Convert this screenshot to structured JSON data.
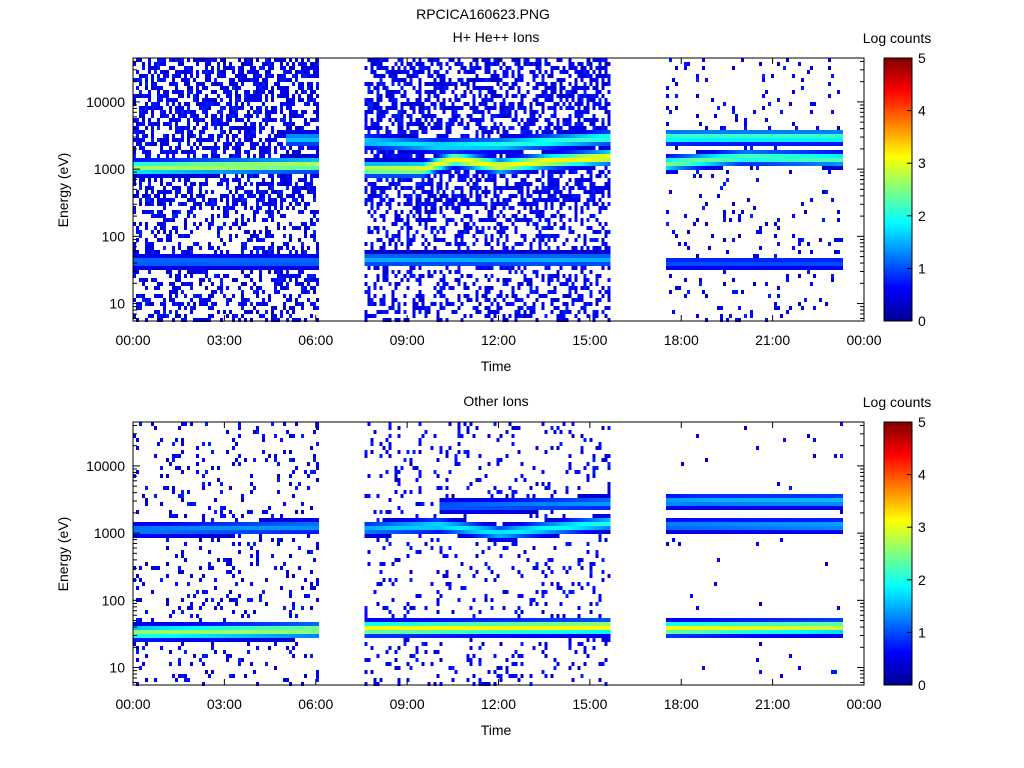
{
  "figure_title": "RPCICA160623.PNG",
  "colors": {
    "axis": "#000000",
    "background": "#ffffff",
    "colormap_stops": [
      "#00008f",
      "#0000ff",
      "#007fff",
      "#00ffff",
      "#7fff7f",
      "#ffff00",
      "#ff7f00",
      "#ff0000",
      "#7f0000"
    ]
  },
  "chart_data": [
    {
      "type": "heatmap",
      "title": "H+ He++ Ions",
      "xlabel": "Time",
      "ylabel": "Energy (eV)",
      "x_tick_labels": [
        "00:00",
        "03:00",
        "06:00",
        "09:00",
        "12:00",
        "15:00",
        "18:00",
        "21:00",
        "00:00"
      ],
      "x_ticks_hours": [
        0,
        3,
        6,
        9,
        12,
        15,
        18,
        21,
        24
      ],
      "xlim_hours": [
        0,
        24
      ],
      "y_scale": "log",
      "ylim": [
        5.5,
        45000
      ],
      "y_tick_labels": [
        "10",
        "100",
        "1000",
        "10000"
      ],
      "y_ticks": [
        10,
        100,
        1000,
        10000
      ],
      "colorbar": {
        "label": "Log counts",
        "range": [
          0,
          5
        ],
        "tick_labels": [
          "0",
          "1",
          "2",
          "3",
          "4",
          "5"
        ]
      },
      "data_intervals_hours": [
        [
          0.0,
          6.1
        ],
        [
          7.6,
          15.6
        ],
        [
          17.5,
          23.3
        ]
      ],
      "bands": [
        {
          "name_hint": "main proton band",
          "points": [
            [
              0.0,
              1050,
              2.7
            ],
            [
              3.0,
              1100,
              2.8
            ],
            [
              6.1,
              1150,
              2.8
            ],
            [
              7.6,
              1000,
              2.8
            ],
            [
              9.5,
              1000,
              3.0
            ],
            [
              10.5,
              1400,
              3.2
            ],
            [
              12.0,
              1100,
              3.1
            ],
            [
              13.5,
              1300,
              3.2
            ],
            [
              15.6,
              1500,
              3.2
            ],
            [
              17.5,
              1200,
              2.5
            ],
            [
              20.0,
              1500,
              2.3
            ],
            [
              23.3,
              1400,
              2.3
            ]
          ]
        },
        {
          "name_hint": "alpha band",
          "points": [
            [
              5.0,
              2800,
              1.6
            ],
            [
              6.1,
              2800,
              1.6
            ],
            [
              10.0,
              2200,
              1.8
            ],
            [
              12.0,
              2300,
              2.0
            ],
            [
              15.6,
              2900,
              2.2
            ],
            [
              18.5,
              3000,
              2.2
            ],
            [
              23.3,
              3000,
              2.2
            ]
          ]
        },
        {
          "name_hint": "low energy band",
          "points": [
            [
              0.0,
              42,
              1.2
            ],
            [
              6.1,
              42,
              1.2
            ],
            [
              7.6,
              45,
              1.5
            ],
            [
              15.6,
              45,
              1.5
            ],
            [
              17.5,
              40,
              1.0
            ],
            [
              22.0,
              40,
              1.0
            ]
          ]
        }
      ]
    },
    {
      "type": "heatmap",
      "title": "Other Ions",
      "xlabel": "Time",
      "ylabel": "Energy (eV)",
      "x_tick_labels": [
        "00:00",
        "03:00",
        "06:00",
        "09:00",
        "12:00",
        "15:00",
        "18:00",
        "21:00",
        "00:00"
      ],
      "x_ticks_hours": [
        0,
        3,
        6,
        9,
        12,
        15,
        18,
        21,
        24
      ],
      "xlim_hours": [
        0,
        24
      ],
      "y_scale": "log",
      "ylim": [
        5.5,
        45000
      ],
      "y_tick_labels": [
        "10",
        "100",
        "1000",
        "10000"
      ],
      "y_ticks": [
        10,
        100,
        1000,
        10000
      ],
      "colorbar": {
        "label": "Log counts",
        "range": [
          0,
          5
        ],
        "tick_labels": [
          "0",
          "1",
          "2",
          "3",
          "4",
          "5"
        ]
      },
      "data_intervals_hours": [
        [
          0.0,
          6.1
        ],
        [
          7.6,
          15.6
        ],
        [
          17.5,
          23.3
        ]
      ],
      "bands": [
        {
          "name_hint": "main band",
          "points": [
            [
              0.0,
              1100,
              1.3
            ],
            [
              6.1,
              1250,
              1.4
            ],
            [
              7.6,
              1150,
              1.5
            ],
            [
              10.0,
              1300,
              1.8
            ],
            [
              12.0,
              1000,
              1.8
            ],
            [
              15.6,
              1400,
              2.0
            ],
            [
              17.5,
              1300,
              1.3
            ],
            [
              23.3,
              1300,
              1.5
            ]
          ]
        },
        {
          "name_hint": "upper band",
          "points": [
            [
              10.0,
              2500,
              1.1
            ],
            [
              12.0,
              2600,
              1.2
            ],
            [
              15.6,
              2800,
              1.4
            ],
            [
              18.5,
              3000,
              1.5
            ],
            [
              23.3,
              3000,
              1.6
            ]
          ]
        },
        {
          "name_hint": "low energy band",
          "points": [
            [
              0.0,
              33,
              2.6
            ],
            [
              6.1,
              36,
              2.7
            ],
            [
              7.6,
              38,
              3.1
            ],
            [
              15.6,
              40,
              3.2
            ],
            [
              17.5,
              38,
              3.1
            ],
            [
              23.3,
              40,
              2.9
            ]
          ]
        }
      ]
    }
  ]
}
